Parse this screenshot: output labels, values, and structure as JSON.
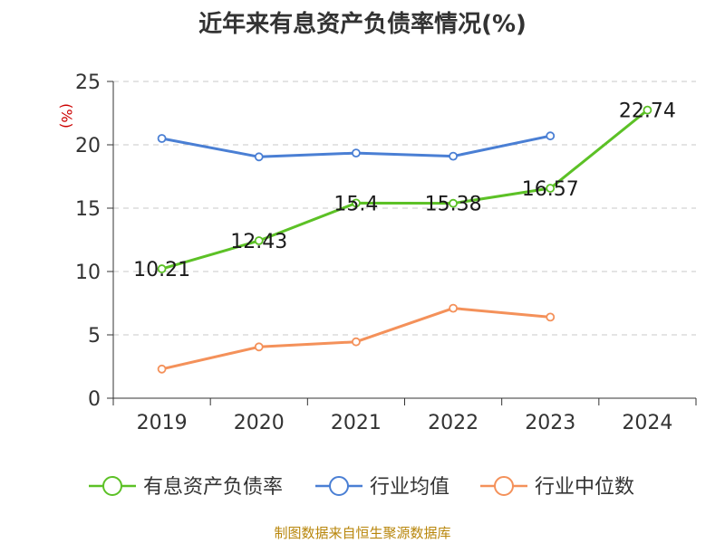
{
  "chart_data": {
    "type": "line",
    "title": "近年来有息资产负债率情况(%)",
    "ylabel": "(%)",
    "xlabel": "",
    "categories": [
      "2019",
      "2020",
      "2021",
      "2022",
      "2023",
      "2024"
    ],
    "ylim": [
      0,
      25
    ],
    "yticks": [
      0,
      5,
      10,
      15,
      20,
      25
    ],
    "grid": true,
    "legend_position": "bottom",
    "series": [
      {
        "name": "有息资产负债率",
        "color": "#5cc126",
        "values": [
          10.21,
          12.43,
          15.4,
          15.38,
          16.57,
          22.74
        ],
        "labels": [
          "10.21",
          "12.43",
          "15.4",
          "15.38",
          "16.57",
          "22.74"
        ]
      },
      {
        "name": "行业均值",
        "color": "#4a7fd4",
        "values": [
          20.5,
          19.05,
          19.35,
          19.1,
          20.7,
          null
        ]
      },
      {
        "name": "行业中位数",
        "color": "#f4915a",
        "values": [
          2.3,
          4.05,
          4.45,
          7.1,
          6.4,
          null
        ]
      }
    ]
  },
  "footer": {
    "source": "制图数据来自恒生聚源数据库"
  }
}
